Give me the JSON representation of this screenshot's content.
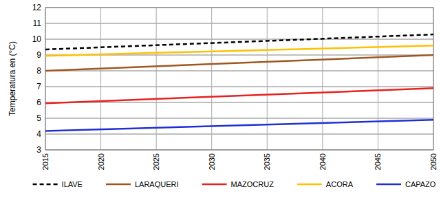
{
  "chart_data": {
    "type": "line",
    "y_label": "Temperatura en (°C)",
    "x": [
      2015,
      2050
    ],
    "xlim": [
      2015,
      2050
    ],
    "xticks": [
      2015,
      2020,
      2025,
      2030,
      2035,
      2040,
      2045,
      2050
    ],
    "ylim": [
      3,
      12
    ],
    "yticks": [
      3,
      4,
      5,
      6,
      7,
      8,
      9,
      10,
      11,
      12
    ],
    "grid": true,
    "legend": "bottom",
    "series": [
      {
        "name": "ILAVE",
        "color": "#000000",
        "line_style": "dashed",
        "values": [
          9.35,
          10.3
        ]
      },
      {
        "name": "LARAQUERI",
        "color": "#a0561e",
        "line_style": "solid",
        "values": [
          8.0,
          9.0
        ]
      },
      {
        "name": "MAZOCRUZ",
        "color": "#e8211e",
        "line_style": "solid",
        "values": [
          5.95,
          6.9
        ]
      },
      {
        "name": "ACORA",
        "color": "#ffc000",
        "line_style": "solid",
        "values": [
          8.95,
          9.6
        ]
      },
      {
        "name": "CAPAZO",
        "color": "#1f2fd6",
        "line_style": "solid",
        "values": [
          4.2,
          4.9
        ]
      }
    ]
  }
}
